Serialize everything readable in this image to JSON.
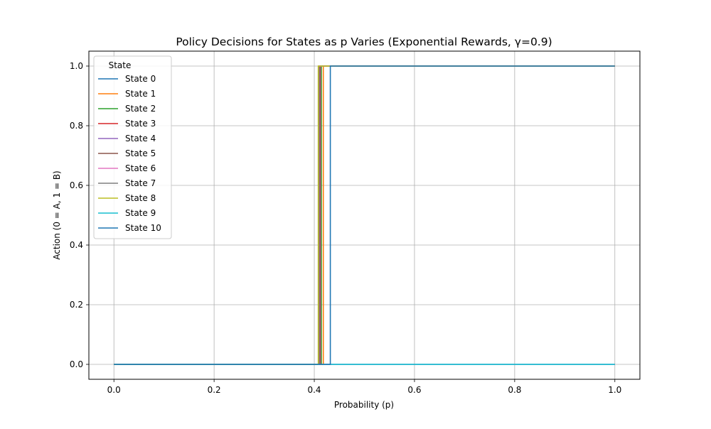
{
  "chart_data": {
    "type": "line",
    "title": "Policy Decisions for States as p Varies (Exponential Rewards, γ=0.9)",
    "xlabel": "Probability (p)",
    "ylabel": "Action (0 = A, 1 = B)",
    "xlim": [
      -0.05,
      1.05
    ],
    "ylim": [
      -0.05,
      1.05
    ],
    "x_ticks": [
      0.0,
      0.2,
      0.4,
      0.6,
      0.8,
      1.0
    ],
    "x_tick_labels": [
      "0.0",
      "0.2",
      "0.4",
      "0.6",
      "0.8",
      "1.0"
    ],
    "y_ticks": [
      0.0,
      0.2,
      0.4,
      0.6,
      0.8,
      1.0
    ],
    "y_tick_labels": [
      "0.0",
      "0.2",
      "0.4",
      "0.6",
      "0.8",
      "1.0"
    ],
    "grid": true,
    "legend": {
      "title": "State",
      "placement": "upper-left"
    },
    "series": [
      {
        "name": "State 0",
        "color": "#1f77b4",
        "x": [
          0.0,
          1.0
        ],
        "y": [
          0,
          0
        ]
      },
      {
        "name": "State 1",
        "color": "#ff7f0e",
        "x": [
          0.0,
          0.418,
          0.418,
          1.0
        ],
        "y": [
          0,
          0,
          1,
          1
        ]
      },
      {
        "name": "State 2",
        "color": "#2ca02c",
        "x": [
          0.0,
          0.414,
          0.414,
          1.0
        ],
        "y": [
          0,
          0,
          1,
          1
        ]
      },
      {
        "name": "State 3",
        "color": "#d62728",
        "x": [
          0.0,
          0.412,
          0.412,
          1.0
        ],
        "y": [
          0,
          0,
          1,
          1
        ]
      },
      {
        "name": "State 4",
        "color": "#9467bd",
        "x": [
          0.0,
          0.411,
          0.411,
          1.0
        ],
        "y": [
          0,
          0,
          1,
          1
        ]
      },
      {
        "name": "State 5",
        "color": "#8c564b",
        "x": [
          0.0,
          0.41,
          0.41,
          1.0
        ],
        "y": [
          0,
          0,
          1,
          1
        ]
      },
      {
        "name": "State 6",
        "color": "#e377c2",
        "x": [
          0.0,
          0.409,
          0.409,
          1.0
        ],
        "y": [
          0,
          0,
          1,
          1
        ]
      },
      {
        "name": "State 7",
        "color": "#7f7f7f",
        "x": [
          0.0,
          0.409,
          0.409,
          1.0
        ],
        "y": [
          0,
          0,
          1,
          1
        ]
      },
      {
        "name": "State 8",
        "color": "#bcbd22",
        "x": [
          0.0,
          0.408,
          0.408,
          1.0
        ],
        "y": [
          0,
          0,
          1,
          1
        ]
      },
      {
        "name": "State 9",
        "color": "#17becf",
        "x": [
          0.0,
          1.0
        ],
        "y": [
          0,
          0
        ]
      },
      {
        "name": "State 10",
        "color": "#1f77b4",
        "x": [
          0.0,
          0.432,
          0.432,
          1.0
        ],
        "y": [
          0,
          0,
          1,
          1
        ]
      }
    ]
  }
}
